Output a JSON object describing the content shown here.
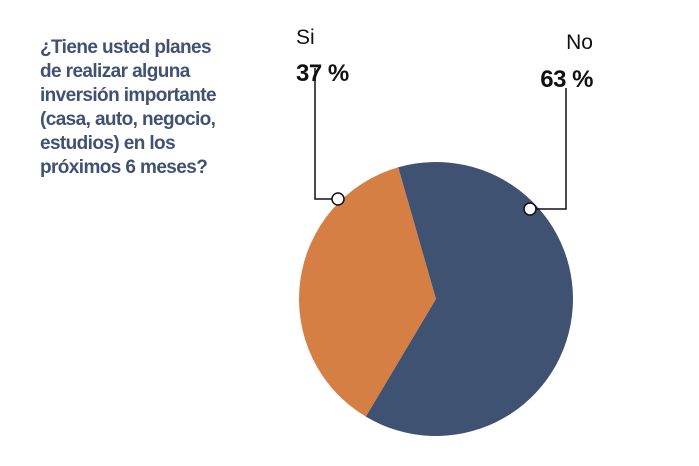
{
  "chart_data": {
    "type": "pie",
    "title_lines": [
      "¿Tiene usted planes",
      "de realizar alguna",
      "inversión importante",
      "(casa, auto, negocio,",
      "estudios) en los",
      "próximos 6 meses?"
    ],
    "slices": [
      {
        "label": "Si",
        "value": 37,
        "value_label": "37 %",
        "color": "#d67f45"
      },
      {
        "label": "No",
        "value": 63,
        "value_label": "63 %",
        "color": "#3f5272"
      }
    ]
  }
}
